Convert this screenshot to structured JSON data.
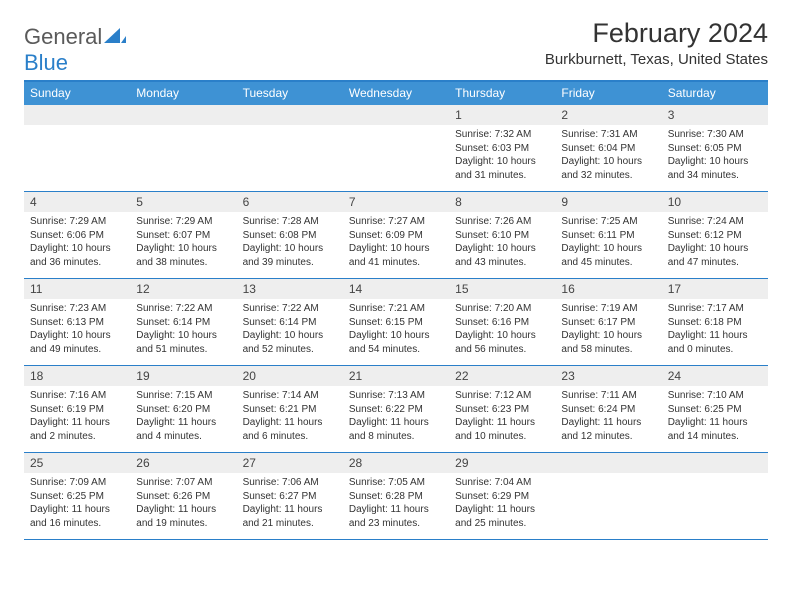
{
  "brand": {
    "text1": "General",
    "text2": "Blue"
  },
  "title": "February 2024",
  "location": "Burkburnett, Texas, United States",
  "colors": {
    "header_bar": "#3e92d4",
    "rule": "#2a7fc9",
    "daynum_bg": "#eeeeee",
    "text": "#333333",
    "logo_gray": "#5a5a5a",
    "logo_blue": "#2a7fc9"
  },
  "weekdays": [
    "Sunday",
    "Monday",
    "Tuesday",
    "Wednesday",
    "Thursday",
    "Friday",
    "Saturday"
  ],
  "weeks": [
    [
      null,
      null,
      null,
      null,
      {
        "n": "1",
        "sr": "Sunrise: 7:32 AM",
        "ss": "Sunset: 6:03 PM",
        "dl": "Daylight: 10 hours and 31 minutes."
      },
      {
        "n": "2",
        "sr": "Sunrise: 7:31 AM",
        "ss": "Sunset: 6:04 PM",
        "dl": "Daylight: 10 hours and 32 minutes."
      },
      {
        "n": "3",
        "sr": "Sunrise: 7:30 AM",
        "ss": "Sunset: 6:05 PM",
        "dl": "Daylight: 10 hours and 34 minutes."
      }
    ],
    [
      {
        "n": "4",
        "sr": "Sunrise: 7:29 AM",
        "ss": "Sunset: 6:06 PM",
        "dl": "Daylight: 10 hours and 36 minutes."
      },
      {
        "n": "5",
        "sr": "Sunrise: 7:29 AM",
        "ss": "Sunset: 6:07 PM",
        "dl": "Daylight: 10 hours and 38 minutes."
      },
      {
        "n": "6",
        "sr": "Sunrise: 7:28 AM",
        "ss": "Sunset: 6:08 PM",
        "dl": "Daylight: 10 hours and 39 minutes."
      },
      {
        "n": "7",
        "sr": "Sunrise: 7:27 AM",
        "ss": "Sunset: 6:09 PM",
        "dl": "Daylight: 10 hours and 41 minutes."
      },
      {
        "n": "8",
        "sr": "Sunrise: 7:26 AM",
        "ss": "Sunset: 6:10 PM",
        "dl": "Daylight: 10 hours and 43 minutes."
      },
      {
        "n": "9",
        "sr": "Sunrise: 7:25 AM",
        "ss": "Sunset: 6:11 PM",
        "dl": "Daylight: 10 hours and 45 minutes."
      },
      {
        "n": "10",
        "sr": "Sunrise: 7:24 AM",
        "ss": "Sunset: 6:12 PM",
        "dl": "Daylight: 10 hours and 47 minutes."
      }
    ],
    [
      {
        "n": "11",
        "sr": "Sunrise: 7:23 AM",
        "ss": "Sunset: 6:13 PM",
        "dl": "Daylight: 10 hours and 49 minutes."
      },
      {
        "n": "12",
        "sr": "Sunrise: 7:22 AM",
        "ss": "Sunset: 6:14 PM",
        "dl": "Daylight: 10 hours and 51 minutes."
      },
      {
        "n": "13",
        "sr": "Sunrise: 7:22 AM",
        "ss": "Sunset: 6:14 PM",
        "dl": "Daylight: 10 hours and 52 minutes."
      },
      {
        "n": "14",
        "sr": "Sunrise: 7:21 AM",
        "ss": "Sunset: 6:15 PM",
        "dl": "Daylight: 10 hours and 54 minutes."
      },
      {
        "n": "15",
        "sr": "Sunrise: 7:20 AM",
        "ss": "Sunset: 6:16 PM",
        "dl": "Daylight: 10 hours and 56 minutes."
      },
      {
        "n": "16",
        "sr": "Sunrise: 7:19 AM",
        "ss": "Sunset: 6:17 PM",
        "dl": "Daylight: 10 hours and 58 minutes."
      },
      {
        "n": "17",
        "sr": "Sunrise: 7:17 AM",
        "ss": "Sunset: 6:18 PM",
        "dl": "Daylight: 11 hours and 0 minutes."
      }
    ],
    [
      {
        "n": "18",
        "sr": "Sunrise: 7:16 AM",
        "ss": "Sunset: 6:19 PM",
        "dl": "Daylight: 11 hours and 2 minutes."
      },
      {
        "n": "19",
        "sr": "Sunrise: 7:15 AM",
        "ss": "Sunset: 6:20 PM",
        "dl": "Daylight: 11 hours and 4 minutes."
      },
      {
        "n": "20",
        "sr": "Sunrise: 7:14 AM",
        "ss": "Sunset: 6:21 PM",
        "dl": "Daylight: 11 hours and 6 minutes."
      },
      {
        "n": "21",
        "sr": "Sunrise: 7:13 AM",
        "ss": "Sunset: 6:22 PM",
        "dl": "Daylight: 11 hours and 8 minutes."
      },
      {
        "n": "22",
        "sr": "Sunrise: 7:12 AM",
        "ss": "Sunset: 6:23 PM",
        "dl": "Daylight: 11 hours and 10 minutes."
      },
      {
        "n": "23",
        "sr": "Sunrise: 7:11 AM",
        "ss": "Sunset: 6:24 PM",
        "dl": "Daylight: 11 hours and 12 minutes."
      },
      {
        "n": "24",
        "sr": "Sunrise: 7:10 AM",
        "ss": "Sunset: 6:25 PM",
        "dl": "Daylight: 11 hours and 14 minutes."
      }
    ],
    [
      {
        "n": "25",
        "sr": "Sunrise: 7:09 AM",
        "ss": "Sunset: 6:25 PM",
        "dl": "Daylight: 11 hours and 16 minutes."
      },
      {
        "n": "26",
        "sr": "Sunrise: 7:07 AM",
        "ss": "Sunset: 6:26 PM",
        "dl": "Daylight: 11 hours and 19 minutes."
      },
      {
        "n": "27",
        "sr": "Sunrise: 7:06 AM",
        "ss": "Sunset: 6:27 PM",
        "dl": "Daylight: 11 hours and 21 minutes."
      },
      {
        "n": "28",
        "sr": "Sunrise: 7:05 AM",
        "ss": "Sunset: 6:28 PM",
        "dl": "Daylight: 11 hours and 23 minutes."
      },
      {
        "n": "29",
        "sr": "Sunrise: 7:04 AM",
        "ss": "Sunset: 6:29 PM",
        "dl": "Daylight: 11 hours and 25 minutes."
      },
      null,
      null
    ]
  ]
}
